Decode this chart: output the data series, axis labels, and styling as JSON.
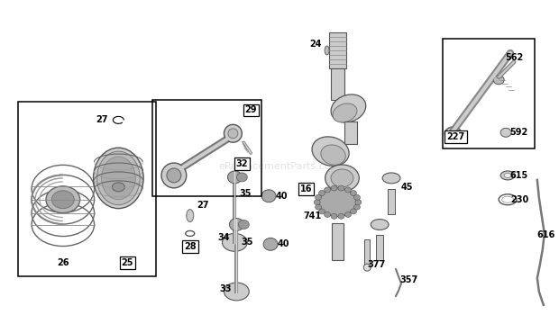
{
  "bg_color": "#ffffff",
  "watermark": "eReplacementParts.com",
  "fig_width": 6.2,
  "fig_height": 3.7,
  "dpi": 100,
  "label_color": "#111111",
  "part_gray": "#aaaaaa",
  "part_dark": "#555555",
  "part_mid": "#888888"
}
